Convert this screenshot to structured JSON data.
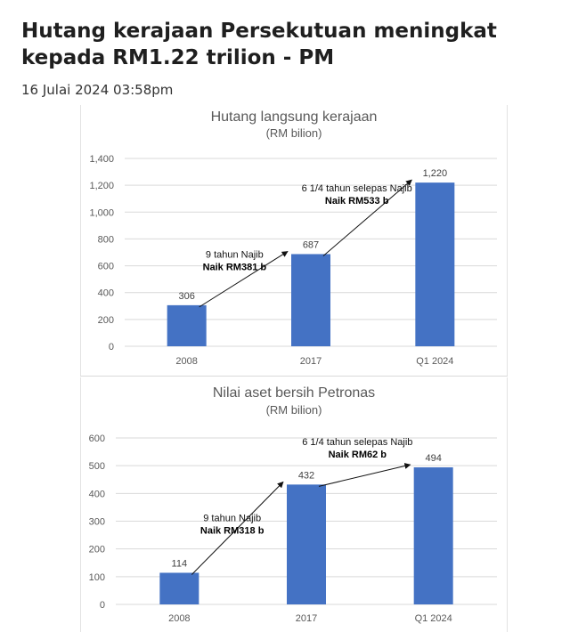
{
  "article": {
    "headline": "Hutang kerajaan Persekutuan meningkat kepada RM1.22 trilion - PM",
    "date": "16 Julai 2024 03:58pm"
  },
  "colors": {
    "bar": "#4472c4",
    "grid": "#d9d9d9",
    "text": "#595959"
  },
  "chart_data": [
    {
      "type": "bar",
      "title": "Hutang langsung kerajaan",
      "subtitle": "(RM bilion)",
      "categories": [
        "2008",
        "2017",
        "Q1 2024"
      ],
      "values": [
        306,
        687,
        1220
      ],
      "value_labels": [
        "306",
        "687",
        "1,220"
      ],
      "ylim": [
        0,
        1400
      ],
      "yticks": [
        0,
        200,
        400,
        600,
        800,
        1000,
        1200,
        1400
      ],
      "ytick_labels": [
        "0",
        "200",
        "400",
        "600",
        "800",
        "1,000",
        "1,200",
        "1,400"
      ],
      "grid": true,
      "annotations": [
        {
          "from": 0,
          "to": 1,
          "line1": "9 tahun Najib",
          "line2": "Naik RM381 b"
        },
        {
          "from": 1,
          "to": 2,
          "line1": "6 1/4 tahun selepas Najib",
          "line2": "Naik RM533 b"
        }
      ]
    },
    {
      "type": "bar",
      "title": "Nilai aset bersih Petronas",
      "subtitle": "(RM bilion)",
      "categories": [
        "2008",
        "2017",
        "Q1 2024"
      ],
      "values": [
        114,
        432,
        494
      ],
      "value_labels": [
        "114",
        "432",
        "494"
      ],
      "ylim": [
        0,
        600
      ],
      "yticks": [
        0,
        100,
        200,
        300,
        400,
        500,
        600
      ],
      "ytick_labels": [
        "0",
        "100",
        "200",
        "300",
        "400",
        "500",
        "600"
      ],
      "grid": true,
      "annotations": [
        {
          "from": 0,
          "to": 1,
          "line1": "9 tahun Najib",
          "line2": "Naik RM318 b"
        },
        {
          "from": 1,
          "to": 2,
          "line1": "6 1/4 tahun selepas Najib",
          "line2": "Naik RM62 b"
        }
      ]
    }
  ]
}
